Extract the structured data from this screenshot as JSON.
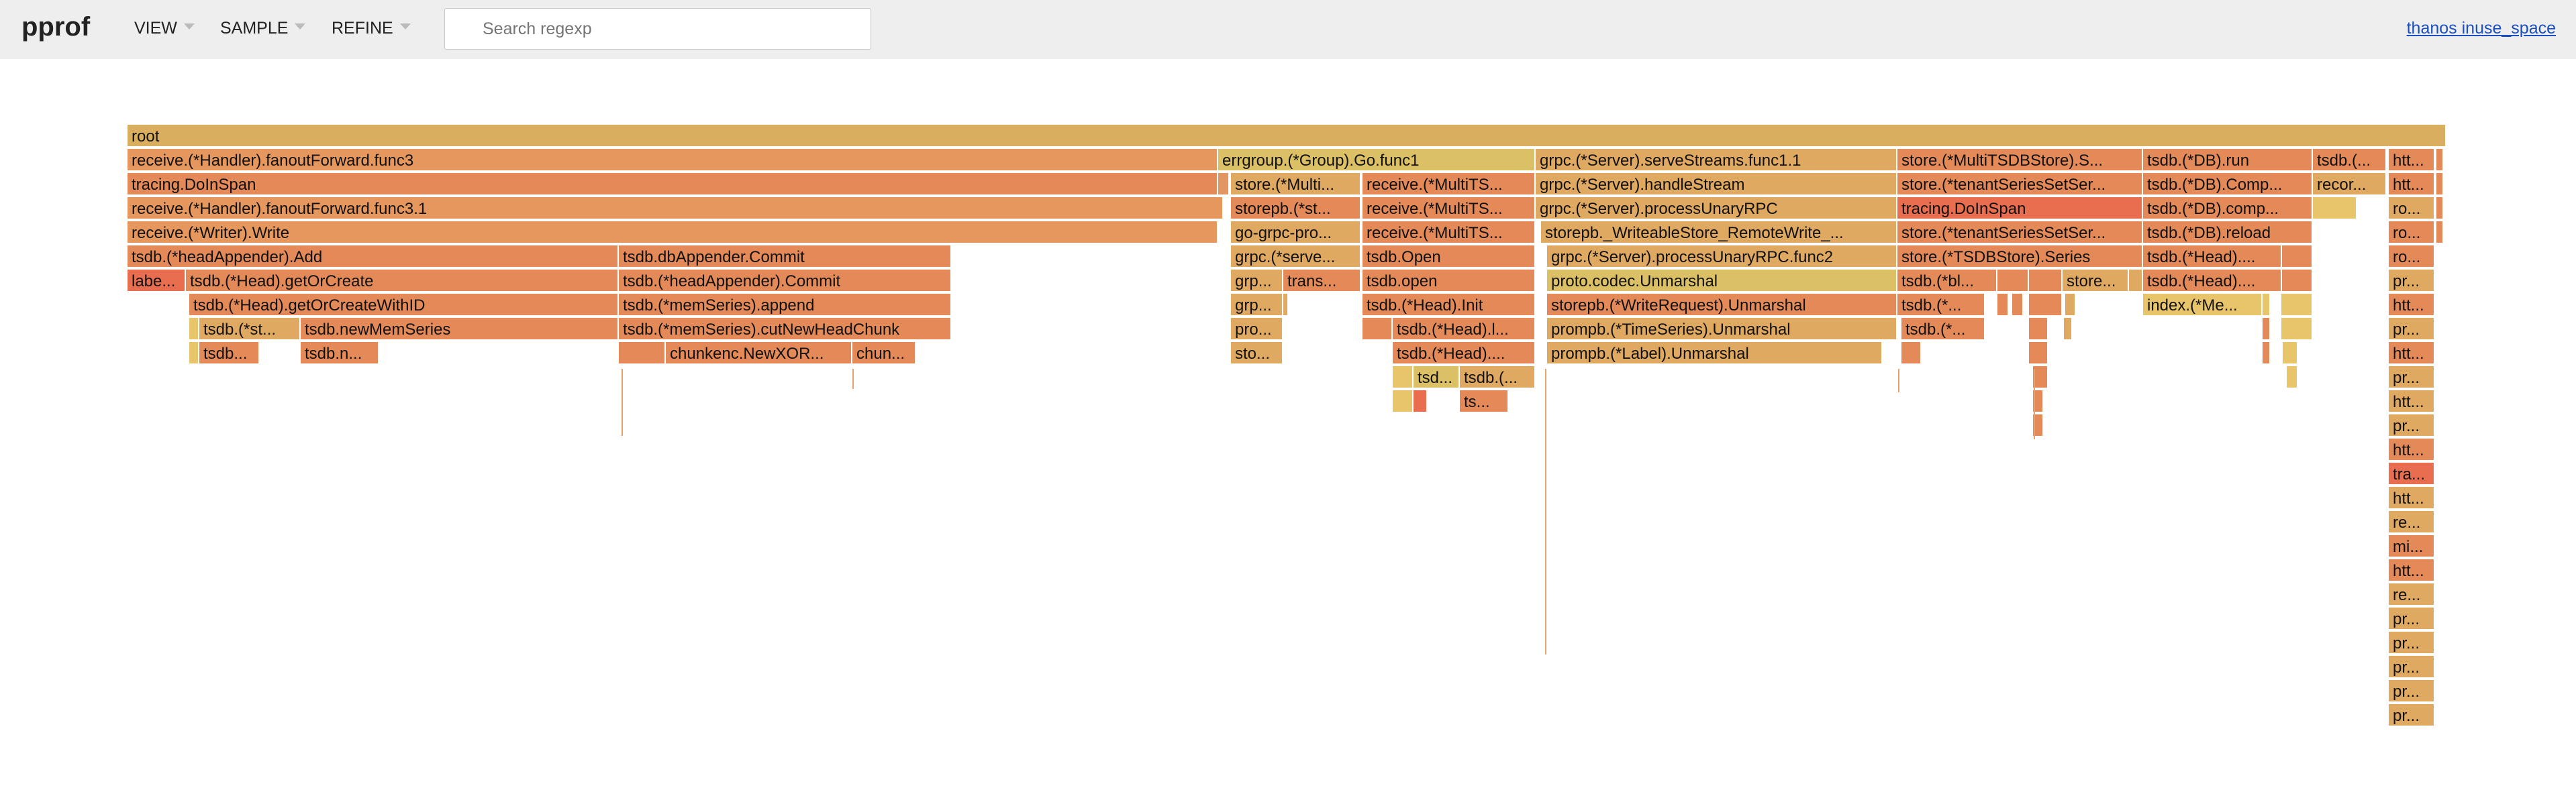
{
  "app": {
    "logo": "pprof",
    "title_link": "thanos inuse_space"
  },
  "menu": {
    "view": "VIEW",
    "sample": "SAMPLE",
    "refine": "REFINE"
  },
  "search": {
    "placeholder": "Search regexp",
    "value": ""
  },
  "flame": {
    "colors": {
      "root": "#d9ae5f",
      "c0": "#e48a59",
      "c1": "#e5975d",
      "c2": "#e0a962",
      "c3": "#e07b55",
      "c4": "#dbc065",
      "c5": "#e8c46a",
      "c6": "#e86e4f",
      "c7": "#e39660"
    },
    "frames": [
      {
        "l": 0,
        "a": 190,
        "b": 3645,
        "c": "root",
        "t": "root"
      },
      {
        "l": 1,
        "a": 190,
        "b": 1815,
        "c": "c1",
        "t": "receive.(*Handler).fanoutForward.func3"
      },
      {
        "l": 1,
        "a": 1815,
        "b": 2288,
        "c": "c4",
        "t": "errgroup.(*Group).Go.func1"
      },
      {
        "l": 1,
        "a": 2288,
        "b": 2827,
        "c": "c2",
        "t": "grpc.(*Server).serveStreams.func1.1"
      },
      {
        "l": 1,
        "a": 2827,
        "b": 3193,
        "c": "c0",
        "t": "store.(*MultiTSDBStore).S..."
      },
      {
        "l": 1,
        "a": 3193,
        "b": 3446,
        "c": "c0",
        "t": "tsdb.(*DB).run"
      },
      {
        "l": 1,
        "a": 3446,
        "b": 3556,
        "c": "c0",
        "t": "tsdb.(..."
      },
      {
        "l": 1,
        "a": 3559,
        "b": 3628,
        "c": "c0",
        "t": "htt..."
      },
      {
        "l": 1,
        "a": 3630,
        "b": 3641,
        "c": "c0",
        "t": ""
      },
      {
        "l": 2,
        "a": 190,
        "b": 1815,
        "c": "c0",
        "t": "tracing.DoInSpan"
      },
      {
        "l": 2,
        "a": 1815,
        "b": 1832,
        "c": "c7",
        "t": ""
      },
      {
        "l": 2,
        "a": 1834,
        "b": 2028,
        "c": "c2",
        "t": "store.(*Multi..."
      },
      {
        "l": 2,
        "a": 2030,
        "b": 2288,
        "c": "c0",
        "t": "receive.(*MultiTS..."
      },
      {
        "l": 2,
        "a": 2288,
        "b": 2827,
        "c": "c2",
        "t": "grpc.(*Server).handleStream"
      },
      {
        "l": 2,
        "a": 2827,
        "b": 3193,
        "c": "c0",
        "t": "store.(*tenantSeriesSetSer..."
      },
      {
        "l": 2,
        "a": 3193,
        "b": 3446,
        "c": "c0",
        "t": "tsdb.(*DB).Comp..."
      },
      {
        "l": 2,
        "a": 3446,
        "b": 3556,
        "c": "c2",
        "t": "recor..."
      },
      {
        "l": 2,
        "a": 3559,
        "b": 3628,
        "c": "c0",
        "t": "htt..."
      },
      {
        "l": 2,
        "a": 3630,
        "b": 3641,
        "c": "c0",
        "t": ""
      },
      {
        "l": 3,
        "a": 190,
        "b": 1823,
        "c": "c1",
        "t": "receive.(*Handler).fanoutForward.func3.1"
      },
      {
        "l": 3,
        "a": 1834,
        "b": 2028,
        "c": "c0",
        "t": "storepb.(*st..."
      },
      {
        "l": 3,
        "a": 2030,
        "b": 2288,
        "c": "c0",
        "t": "receive.(*MultiTS..."
      },
      {
        "l": 3,
        "a": 2288,
        "b": 2827,
        "c": "c2",
        "t": "grpc.(*Server).processUnaryRPC"
      },
      {
        "l": 3,
        "a": 2827,
        "b": 3193,
        "c": "c6",
        "t": "tracing.DoInSpan"
      },
      {
        "l": 3,
        "a": 3193,
        "b": 3446,
        "c": "c0",
        "t": "tsdb.(*DB).comp..."
      },
      {
        "l": 3,
        "a": 3446,
        "b": 3512,
        "c": "c5",
        "t": ""
      },
      {
        "l": 3,
        "a": 3559,
        "b": 3628,
        "c": "c2",
        "t": "ro..."
      },
      {
        "l": 3,
        "a": 3630,
        "b": 3641,
        "c": "c0",
        "t": ""
      },
      {
        "l": 4,
        "a": 190,
        "b": 1815,
        "c": "c1",
        "t": "receive.(*Writer).Write"
      },
      {
        "l": 4,
        "a": 1834,
        "b": 2028,
        "c": "c2",
        "t": "go-grpc-pro..."
      },
      {
        "l": 4,
        "a": 2030,
        "b": 2288,
        "c": "c0",
        "t": "receive.(*MultiTS..."
      },
      {
        "l": 4,
        "a": 2296,
        "b": 2827,
        "c": "c2",
        "t": "storepb._WriteableStore_RemoteWrite_..."
      },
      {
        "l": 4,
        "a": 2827,
        "b": 3193,
        "c": "c0",
        "t": "store.(*tenantSeriesSetSer..."
      },
      {
        "l": 4,
        "a": 3193,
        "b": 3446,
        "c": "c0",
        "t": "tsdb.(*DB).reload"
      },
      {
        "l": 4,
        "a": 3559,
        "b": 3628,
        "c": "c0",
        "t": "ro..."
      },
      {
        "l": 4,
        "a": 3630,
        "b": 3641,
        "c": "c0",
        "t": ""
      },
      {
        "l": 5,
        "a": 190,
        "b": 922,
        "c": "c0",
        "t": "tsdb.(*headAppender).Add"
      },
      {
        "l": 5,
        "a": 922,
        "b": 1418,
        "c": "c0",
        "t": "tsdb.dbAppender.Commit"
      },
      {
        "l": 5,
        "a": 1834,
        "b": 2028,
        "c": "c2",
        "t": "grpc.(*serve..."
      },
      {
        "l": 5,
        "a": 2030,
        "b": 2288,
        "c": "c0",
        "t": "tsdb.Open"
      },
      {
        "l": 5,
        "a": 2305,
        "b": 2827,
        "c": "c2",
        "t": "grpc.(*Server).processUnaryRPC.func2"
      },
      {
        "l": 5,
        "a": 2827,
        "b": 3193,
        "c": "c0",
        "t": "store.(*TSDBStore).Series"
      },
      {
        "l": 5,
        "a": 3193,
        "b": 3400,
        "c": "c0",
        "t": "tsdb.(*Head)...."
      },
      {
        "l": 5,
        "a": 3400,
        "b": 3446,
        "c": "c0",
        "t": ""
      },
      {
        "l": 5,
        "a": 3559,
        "b": 3628,
        "c": "c0",
        "t": "ro..."
      },
      {
        "l": 6,
        "a": 190,
        "b": 277,
        "c": "c6",
        "t": "labe..."
      },
      {
        "l": 6,
        "a": 277,
        "b": 922,
        "c": "c0",
        "t": "tsdb.(*Head).getOrCreate"
      },
      {
        "l": 6,
        "a": 922,
        "b": 1418,
        "c": "c0",
        "t": "tsdb.(*headAppender).Commit"
      },
      {
        "l": 6,
        "a": 1834,
        "b": 1912,
        "c": "c2",
        "t": "grp..."
      },
      {
        "l": 6,
        "a": 1912,
        "b": 2028,
        "c": "c0",
        "t": "trans..."
      },
      {
        "l": 6,
        "a": 2030,
        "b": 2288,
        "c": "c0",
        "t": "tsdb.open"
      },
      {
        "l": 6,
        "a": 2305,
        "b": 2827,
        "c": "c4",
        "t": "proto.codec.Unmarshal"
      },
      {
        "l": 6,
        "a": 2827,
        "b": 2976,
        "c": "c0",
        "t": "tsdb.(*bl..."
      },
      {
        "l": 6,
        "a": 2976,
        "b": 3023,
        "c": "c0",
        "t": ""
      },
      {
        "l": 6,
        "a": 3023,
        "b": 3073,
        "c": "c0",
        "t": ""
      },
      {
        "l": 6,
        "a": 3073,
        "b": 3172,
        "c": "c2",
        "t": "store..."
      },
      {
        "l": 6,
        "a": 3172,
        "b": 3193,
        "c": "c2",
        "t": ""
      },
      {
        "l": 6,
        "a": 3193,
        "b": 3400,
        "c": "c0",
        "t": "tsdb.(*Head)...."
      },
      {
        "l": 6,
        "a": 3400,
        "b": 3446,
        "c": "c0",
        "t": ""
      },
      {
        "l": 6,
        "a": 3559,
        "b": 3628,
        "c": "c2",
        "t": "pr..."
      },
      {
        "l": 7,
        "a": 282,
        "b": 922,
        "c": "c0",
        "t": "tsdb.(*Head).getOrCreateWithID"
      },
      {
        "l": 7,
        "a": 922,
        "b": 1418,
        "c": "c0",
        "t": "tsdb.(*memSeries).append"
      },
      {
        "l": 7,
        "a": 1834,
        "b": 1912,
        "c": "c2",
        "t": "grp..."
      },
      {
        "l": 7,
        "a": 1912,
        "b": 1920,
        "c": "c2",
        "t": ""
      },
      {
        "l": 7,
        "a": 2030,
        "b": 2288,
        "c": "c0",
        "t": "tsdb.(*Head).Init"
      },
      {
        "l": 7,
        "a": 2305,
        "b": 2827,
        "c": "c0",
        "t": "storepb.(*WriteRequest).Unmarshal"
      },
      {
        "l": 7,
        "a": 2827,
        "b": 2958,
        "c": "c0",
        "t": "tsdb.(*..."
      },
      {
        "l": 7,
        "a": 2976,
        "b": 2993,
        "c": "c0",
        "t": ""
      },
      {
        "l": 7,
        "a": 2998,
        "b": 3015,
        "c": "c0",
        "t": ""
      },
      {
        "l": 7,
        "a": 3023,
        "b": 3073,
        "c": "c0",
        "t": ""
      },
      {
        "l": 7,
        "a": 3077,
        "b": 3093,
        "c": "c2",
        "t": ""
      },
      {
        "l": 7,
        "a": 3193,
        "b": 3371,
        "c": "c5",
        "t": "index.(*Me..."
      },
      {
        "l": 7,
        "a": 3371,
        "b": 3383,
        "c": "c5",
        "t": ""
      },
      {
        "l": 7,
        "a": 3399,
        "b": 3446,
        "c": "c5",
        "t": ""
      },
      {
        "l": 7,
        "a": 3559,
        "b": 3628,
        "c": "c0",
        "t": "htt..."
      },
      {
        "l": 8,
        "a": 282,
        "b": 297,
        "c": "c5",
        "t": ""
      },
      {
        "l": 8,
        "a": 297,
        "b": 448,
        "c": "c2",
        "t": "tsdb.(*st..."
      },
      {
        "l": 8,
        "a": 448,
        "b": 922,
        "c": "c0",
        "t": "tsdb.newMemSeries"
      },
      {
        "l": 8,
        "a": 922,
        "b": 1418,
        "c": "c0",
        "t": "tsdb.(*memSeries).cutNewHeadChunk"
      },
      {
        "l": 8,
        "a": 1834,
        "b": 1912,
        "c": "c2",
        "t": "pro..."
      },
      {
        "l": 8,
        "a": 2030,
        "b": 2075,
        "c": "c0",
        "t": ""
      },
      {
        "l": 8,
        "a": 2075,
        "b": 2288,
        "c": "c0",
        "t": "tsdb.(*Head).l..."
      },
      {
        "l": 8,
        "a": 2305,
        "b": 2827,
        "c": "c2",
        "t": "prompb.(*TimeSeries).Unmarshal"
      },
      {
        "l": 8,
        "a": 2833,
        "b": 2958,
        "c": "c0",
        "t": "tsdb.(*..."
      },
      {
        "l": 8,
        "a": 3023,
        "b": 3052,
        "c": "c0",
        "t": ""
      },
      {
        "l": 8,
        "a": 3075,
        "b": 3088,
        "c": "c2",
        "t": ""
      },
      {
        "l": 8,
        "a": 3371,
        "b": 3383,
        "c": "c0",
        "t": ""
      },
      {
        "l": 8,
        "a": 3399,
        "b": 3446,
        "c": "c5",
        "t": ""
      },
      {
        "l": 8,
        "a": 3559,
        "b": 3628,
        "c": "c2",
        "t": "pr..."
      },
      {
        "l": 9,
        "a": 282,
        "b": 297,
        "c": "c5",
        "t": ""
      },
      {
        "l": 9,
        "a": 297,
        "b": 387,
        "c": "c0",
        "t": "tsdb..."
      },
      {
        "l": 9,
        "a": 448,
        "b": 565,
        "c": "c0",
        "t": "tsdb.n..."
      },
      {
        "l": 9,
        "a": 922,
        "b": 992,
        "c": "c0",
        "t": ""
      },
      {
        "l": 9,
        "a": 992,
        "b": 1270,
        "c": "c0",
        "t": "chunkenc.NewXOR..."
      },
      {
        "l": 9,
        "a": 1270,
        "b": 1365,
        "c": "c0",
        "t": "chun..."
      },
      {
        "l": 9,
        "a": 1834,
        "b": 1912,
        "c": "c2",
        "t": "sto..."
      },
      {
        "l": 9,
        "a": 2075,
        "b": 2288,
        "c": "c0",
        "t": "tsdb.(*Head)...."
      },
      {
        "l": 9,
        "a": 2305,
        "b": 2805,
        "c": "c2",
        "t": "prompb.(*Label).Unmarshal"
      },
      {
        "l": 9,
        "a": 2833,
        "b": 2863,
        "c": "c0",
        "t": ""
      },
      {
        "l": 9,
        "a": 3023,
        "b": 3052,
        "c": "c0",
        "t": ""
      },
      {
        "l": 9,
        "a": 3371,
        "b": 3383,
        "c": "c0",
        "t": ""
      },
      {
        "l": 9,
        "a": 3401,
        "b": 3424,
        "c": "c5",
        "t": ""
      },
      {
        "l": 9,
        "a": 3559,
        "b": 3628,
        "c": "c0",
        "t": "htt..."
      },
      {
        "l": 10,
        "a": 2075,
        "b": 2106,
        "c": "c5",
        "t": ""
      },
      {
        "l": 10,
        "a": 2106,
        "b": 2175,
        "c": "c4",
        "t": "tsd..."
      },
      {
        "l": 10,
        "a": 2175,
        "b": 2288,
        "c": "c2",
        "t": "tsdb.(..."
      },
      {
        "l": 10,
        "a": 3029,
        "b": 3052,
        "c": "c0",
        "t": ""
      },
      {
        "l": 10,
        "a": 3407,
        "b": 3424,
        "c": "c5",
        "t": ""
      },
      {
        "l": 10,
        "a": 3559,
        "b": 3628,
        "c": "c2",
        "t": "pr..."
      },
      {
        "l": 11,
        "a": 2075,
        "b": 2106,
        "c": "c5",
        "t": ""
      },
      {
        "l": 11,
        "a": 2106,
        "b": 2127,
        "c": "c6",
        "t": ""
      },
      {
        "l": 11,
        "a": 2175,
        "b": 2248,
        "c": "c0",
        "t": "ts..."
      },
      {
        "l": 11,
        "a": 3029,
        "b": 3045,
        "c": "c0",
        "t": ""
      },
      {
        "l": 11,
        "a": 3559,
        "b": 3628,
        "c": "c2",
        "t": "htt..."
      },
      {
        "l": 12,
        "a": 3029,
        "b": 3045,
        "c": "c0",
        "t": ""
      },
      {
        "l": 12,
        "a": 3559,
        "b": 3628,
        "c": "c2",
        "t": "pr..."
      },
      {
        "l": 13,
        "a": 3559,
        "b": 3628,
        "c": "c0",
        "t": "htt..."
      },
      {
        "l": 14,
        "a": 3559,
        "b": 3628,
        "c": "c6",
        "t": "tra..."
      },
      {
        "l": 15,
        "a": 3559,
        "b": 3628,
        "c": "c2",
        "t": "htt..."
      },
      {
        "l": 16,
        "a": 3559,
        "b": 3628,
        "c": "c2",
        "t": "re..."
      },
      {
        "l": 17,
        "a": 3559,
        "b": 3628,
        "c": "c0",
        "t": "mi..."
      },
      {
        "l": 18,
        "a": 3559,
        "b": 3628,
        "c": "c0",
        "t": "htt..."
      },
      {
        "l": 19,
        "a": 3559,
        "b": 3628,
        "c": "c2",
        "t": "re..."
      },
      {
        "l": 20,
        "a": 3559,
        "b": 3628,
        "c": "c2",
        "t": "pr..."
      },
      {
        "l": 21,
        "a": 3559,
        "b": 3628,
        "c": "c2",
        "t": "pr..."
      },
      {
        "l": 22,
        "a": 3559,
        "b": 3628,
        "c": "c2",
        "t": "pr..."
      },
      {
        "l": 23,
        "a": 3559,
        "b": 3628,
        "c": "c2",
        "t": "pr..."
      },
      {
        "l": 24,
        "a": 3559,
        "b": 3628,
        "c": "c2",
        "t": "pr..."
      }
    ]
  }
}
